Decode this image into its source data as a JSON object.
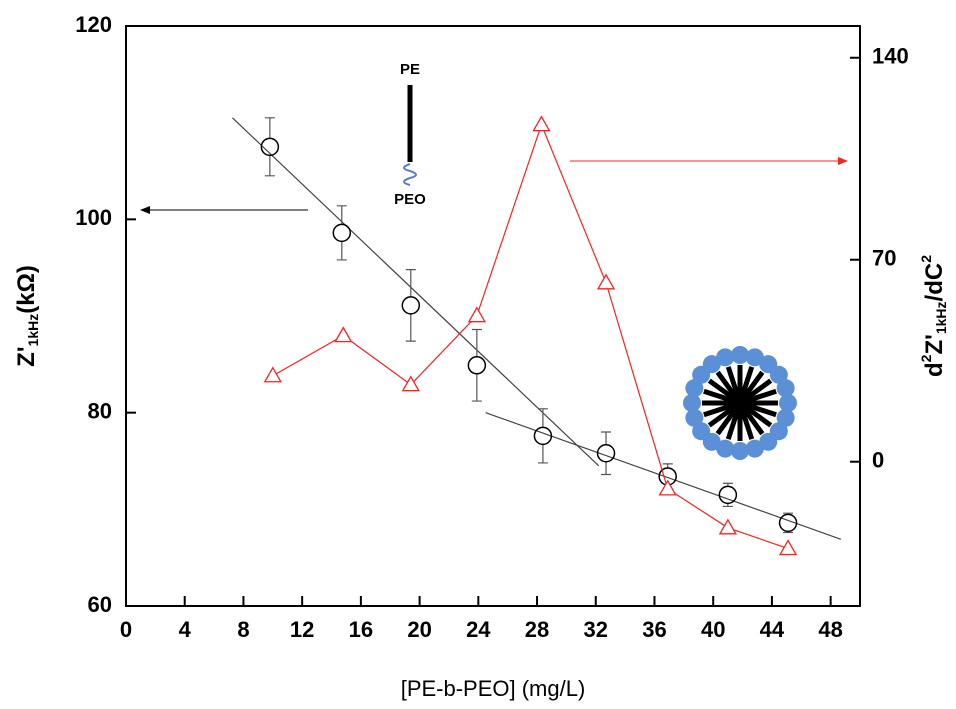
{
  "chart_data": {
    "type": "line",
    "xlabel": "[PE-b-PEO] (mg/L)",
    "ylabel_parts": [
      "Z'",
      "1kHz",
      "(kΩ)"
    ],
    "y2label_parts": [
      "d",
      "2",
      "Z'",
      "1kHz",
      "/dC",
      "2"
    ],
    "annotations": [
      "PE",
      "PEO"
    ],
    "xlim": [
      0,
      50
    ],
    "xticks": [
      0,
      4,
      8,
      12,
      16,
      20,
      24,
      28,
      32,
      36,
      40,
      44,
      48
    ],
    "ylim": [
      60,
      120
    ],
    "yticks": [
      60,
      80,
      100,
      120
    ],
    "y2lim": [
      -50,
      151
    ],
    "y2ticks": [
      0,
      70,
      140
    ],
    "series": [
      {
        "color": "#000000",
        "marker": "circle",
        "x": [
          9.8,
          14.7,
          19.4,
          23.9,
          28.4,
          32.7,
          36.9,
          41.0,
          45.1
        ],
        "values": [
          107.5,
          98.6,
          91.1,
          84.9,
          77.6,
          75.8,
          73.4,
          71.5,
          68.6
        ],
        "errors": [
          3.0,
          2.8,
          3.7,
          3.7,
          2.8,
          2.2,
          1.3,
          1.2,
          1.0
        ]
      },
      {
        "color": "#ff2020",
        "marker": "triangle",
        "axis": "y2",
        "x": [
          10.0,
          14.8,
          19.4,
          23.9,
          28.3,
          32.7,
          36.9,
          41.0,
          45.1
        ],
        "values": [
          29.8,
          43.7,
          26.7,
          50.6,
          116.8,
          62,
          -9.4,
          -22.9,
          -30.1
        ]
      }
    ],
    "fit_lines": [
      {
        "color": "#444444",
        "x": [
          7.25,
          32.2
        ],
        "values": [
          110.5,
          74.5
        ]
      },
      {
        "color": "#444444",
        "x": [
          24.5,
          48.7
        ],
        "values": [
          80,
          66.9
        ]
      }
    ]
  }
}
